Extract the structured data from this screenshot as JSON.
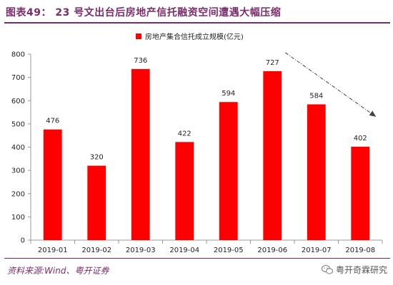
{
  "header": {
    "title": "图表49：  23 号文出台后房地产信托融资空间遭遇大幅压缩"
  },
  "footer": {
    "source": "资料来源:Wind、粤开证券",
    "watermark": "粤开奇霖研究"
  },
  "colors": {
    "bar": "#ff0000",
    "title": "#7b2d6b",
    "axis": "#999999",
    "arrow": "#444444"
  },
  "chart_data": {
    "type": "bar",
    "categories": [
      "2019-01",
      "2019-02",
      "2019-03",
      "2019-04",
      "2019-05",
      "2019-06",
      "2019-07",
      "2019-08"
    ],
    "series": [
      {
        "name": "房地产集合信托成立规模(亿元)",
        "values": [
          476,
          320,
          736,
          422,
          594,
          727,
          584,
          402
        ]
      }
    ],
    "data_labels": [
      "476",
      "320",
      "736",
      "422",
      "594",
      "727",
      "584",
      "402"
    ],
    "ylim": [
      0,
      800
    ],
    "yticks": [
      0,
      100,
      200,
      300,
      400,
      500,
      600,
      700,
      800
    ],
    "legend_position": "top-center",
    "grid": false,
    "annotation": {
      "type": "dashed-arrow",
      "from_category": "2019-06",
      "to_category": "2019-08",
      "direction": "down"
    }
  }
}
